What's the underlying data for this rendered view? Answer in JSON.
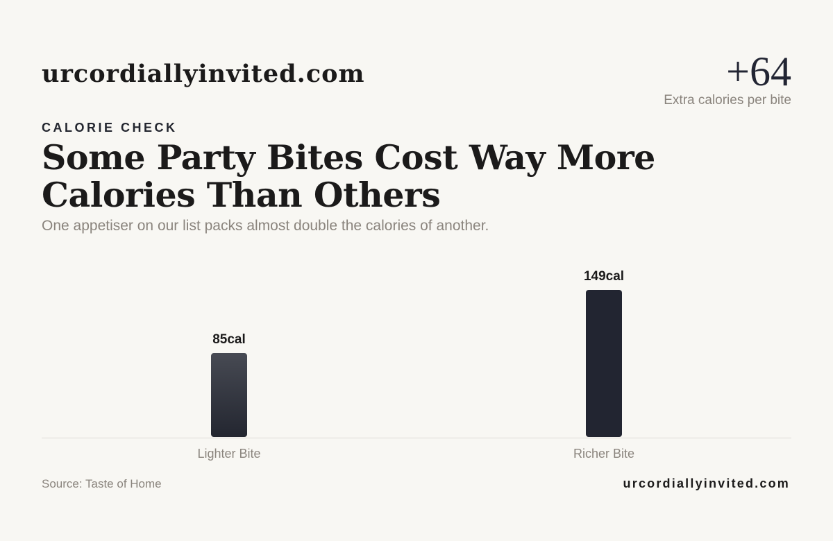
{
  "header": {
    "brand": "urcordiallyinvited.com",
    "stat_value": "+64",
    "stat_label": "Extra calories per bite"
  },
  "eyebrow": "CALORIE CHECK",
  "title": "Some Party Bites Cost Way More Calories Than Others",
  "subtitle": "One appetiser on our list packs almost double the calories of another.",
  "footer": {
    "source": "Source: Taste of Home",
    "brand": "urcordiallyinvited.com"
  },
  "colors": {
    "bar_light_top": "#474a53",
    "bar_light_bottom": "#232630",
    "bar_dark": "#222531",
    "axis": "#dddbd6",
    "value_label": "#1b1a1a",
    "category_label": "#8a847d"
  },
  "chart_data": {
    "type": "bar",
    "categories": [
      "Lighter Bite",
      "Richer Bite"
    ],
    "values": [
      85,
      149
    ],
    "value_suffix": "cal",
    "title": "",
    "xlabel": "",
    "ylabel": "",
    "grid": false
  }
}
